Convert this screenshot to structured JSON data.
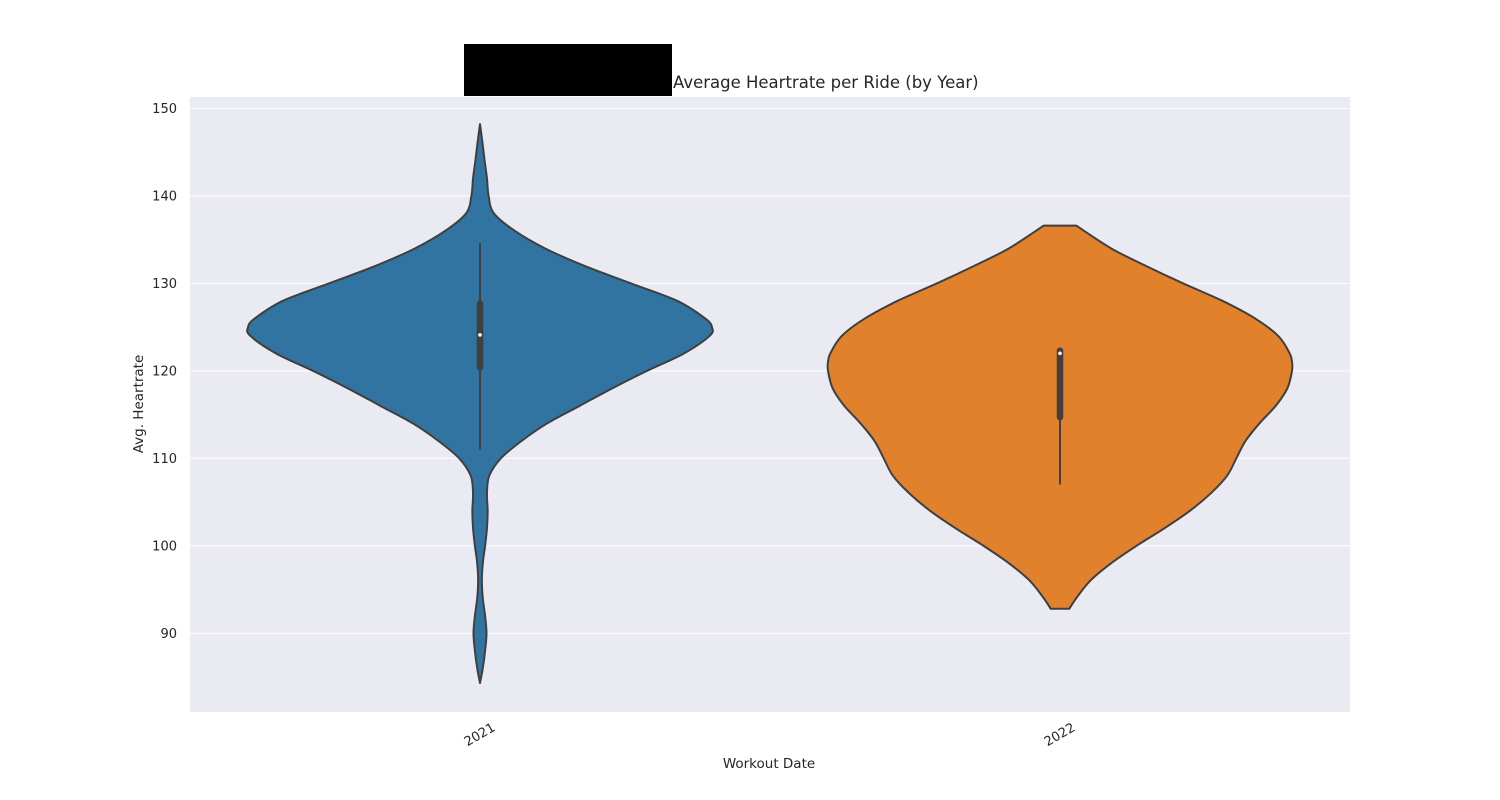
{
  "chart_data": {
    "type": "violin",
    "title": "Average Heartrate per Ride (by Year)",
    "xlabel": "Workout Date",
    "ylabel": "Avg. Heartrate",
    "categories": [
      "2021",
      "2022"
    ],
    "ylim": [
      81,
      151.3
    ],
    "yticks": [
      90,
      100,
      110,
      120,
      130,
      140,
      150
    ],
    "grid": true,
    "background": "#eaeaf2",
    "colors": [
      "#3274a1",
      "#e1812c"
    ],
    "violins": [
      {
        "category": "2021",
        "color": "#3274a1",
        "min": 84.3,
        "max": 148.2,
        "q1": 120.4,
        "median": 124.1,
        "q3": 127.7,
        "whisker_low": 111.0,
        "whisker_high": 134.6,
        "density": [
          [
            84.3,
            0.0
          ],
          [
            86,
            0.012
          ],
          [
            88,
            0.022
          ],
          [
            90,
            0.028
          ],
          [
            92,
            0.022
          ],
          [
            94,
            0.012
          ],
          [
            96,
            0.008
          ],
          [
            98,
            0.012
          ],
          [
            100,
            0.022
          ],
          [
            102,
            0.03
          ],
          [
            104,
            0.033
          ],
          [
            106,
            0.03
          ],
          [
            108,
            0.04
          ],
          [
            110,
            0.09
          ],
          [
            112,
            0.18
          ],
          [
            114,
            0.29
          ],
          [
            116,
            0.43
          ],
          [
            118,
            0.57
          ],
          [
            120,
            0.72
          ],
          [
            122,
            0.88
          ],
          [
            124,
            0.99
          ],
          [
            125,
            1.0
          ],
          [
            126,
            0.97
          ],
          [
            128,
            0.85
          ],
          [
            130,
            0.65
          ],
          [
            132,
            0.45
          ],
          [
            134,
            0.28
          ],
          [
            136,
            0.15
          ],
          [
            138,
            0.06
          ],
          [
            140,
            0.037
          ],
          [
            142,
            0.03
          ],
          [
            144,
            0.02
          ],
          [
            146,
            0.011
          ],
          [
            148.2,
            0.0
          ]
        ]
      },
      {
        "category": "2022",
        "color": "#e1812c",
        "min": 92.8,
        "max": 136.6,
        "q1": 114.7,
        "median": 122.0,
        "q3": 122.3,
        "whisker_low": 107.0,
        "whisker_high": 122.3,
        "density": [
          [
            92.8,
            0.04
          ],
          [
            94,
            0.07
          ],
          [
            96,
            0.13
          ],
          [
            98,
            0.22
          ],
          [
            100,
            0.33
          ],
          [
            102,
            0.45
          ],
          [
            104,
            0.56
          ],
          [
            106,
            0.65
          ],
          [
            108,
            0.72
          ],
          [
            110,
            0.76
          ],
          [
            112,
            0.8
          ],
          [
            114,
            0.86
          ],
          [
            116,
            0.93
          ],
          [
            118,
            0.98
          ],
          [
            120,
            1.0
          ],
          [
            121,
            1.0
          ],
          [
            122,
            0.99
          ],
          [
            124,
            0.94
          ],
          [
            126,
            0.84
          ],
          [
            128,
            0.7
          ],
          [
            130,
            0.53
          ],
          [
            132,
            0.37
          ],
          [
            134,
            0.22
          ],
          [
            136.6,
            0.07
          ]
        ]
      }
    ]
  }
}
